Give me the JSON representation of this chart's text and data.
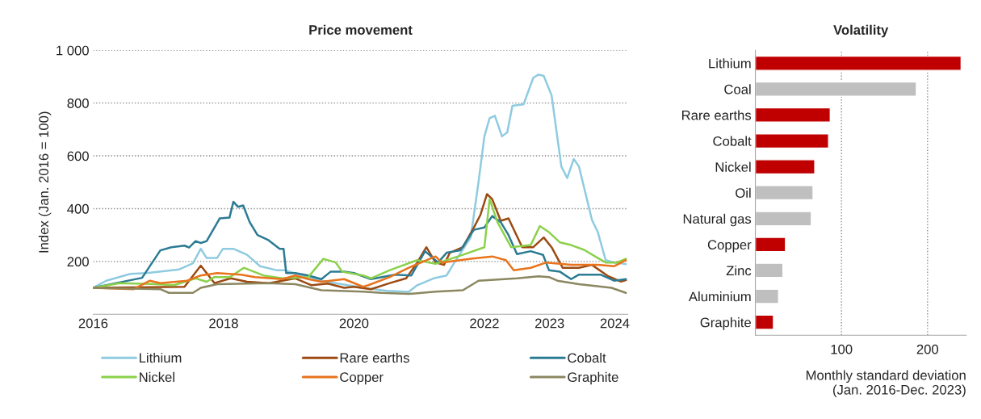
{
  "chart_data": [
    {
      "type": "line",
      "title": "Price movement",
      "ylabel": "Index (Jan. 2016 = 100)",
      "xlim": [
        2016,
        2024.2
      ],
      "xticks": [
        2016,
        2018,
        2020,
        2022,
        2023,
        2024
      ],
      "ylim": [
        0,
        1000
      ],
      "yticks": [
        {
          "value": 200,
          "label": "200"
        },
        {
          "value": 400,
          "label": "400"
        },
        {
          "value": 600,
          "label": "600"
        },
        {
          "value": 800,
          "label": "800"
        },
        {
          "value": 1000,
          "label": "1 000"
        }
      ],
      "grid": "y",
      "legend": "bottom",
      "line_style": "solid",
      "marker": "none",
      "series": [
        {
          "name": "Lithium",
          "color": "#8fcbe0",
          "x": [
            2016.0,
            2016.2,
            2016.57,
            2016.82,
            2017.32,
            2017.53,
            2017.65,
            2017.74,
            2017.9,
            2017.99,
            2018.15,
            2018.36,
            2018.56,
            2018.81,
            2018.93,
            2019.5,
            2020.14,
            2020.5,
            2020.84,
            2020.97,
            2021.22,
            2021.42,
            2021.54,
            2021.79,
            2021.91,
            2022.0,
            2022.08,
            2022.16,
            2022.27,
            2022.35,
            2022.43,
            2022.6,
            2022.75,
            2022.83,
            2022.91,
            2023.03,
            2023.18,
            2023.27,
            2023.37,
            2023.45,
            2023.65,
            2023.74,
            2023.86,
            2023.99,
            2024.17
          ],
          "values": [
            100,
            127,
            153,
            156,
            170,
            193,
            248,
            213,
            213,
            248,
            248,
            225,
            182,
            167,
            167,
            127,
            100,
            89,
            85,
            110,
            136,
            147,
            196,
            291,
            501,
            674,
            743,
            752,
            674,
            689,
            790,
            795,
            896,
            908,
            903,
            830,
            560,
            516,
            588,
            560,
            357,
            311,
            205,
            196,
            190
          ]
        },
        {
          "name": "Rare earths",
          "color": "#9c4a12",
          "x": [
            2016.0,
            2017.4,
            2017.65,
            2017.74,
            2017.86,
            2018.11,
            2018.36,
            2018.7,
            2019.1,
            2019.35,
            2019.6,
            2019.85,
            2020.0,
            2020.26,
            2020.55,
            2020.8,
            2020.97,
            2021.11,
            2021.25,
            2021.38,
            2021.47,
            2021.67,
            2021.84,
            2021.94,
            2022.04,
            2022.12,
            2022.25,
            2022.37,
            2022.58,
            2022.75,
            2022.91,
            2023.03,
            2023.2,
            2023.45,
            2023.65,
            2023.9,
            2024.09,
            2024.17
          ],
          "values": [
            100,
            104,
            184,
            156,
            118,
            136,
            123,
            118,
            136,
            110,
            116,
            100,
            104,
            95,
            118,
            136,
            196,
            254,
            196,
            187,
            233,
            254,
            329,
            377,
            455,
            436,
            354,
            363,
            254,
            254,
            291,
            254,
            176,
            176,
            187,
            144,
            124,
            129
          ]
        },
        {
          "name": "Cobalt",
          "color": "#2b7b93",
          "x": [
            2016.0,
            2016.75,
            2017.03,
            2017.2,
            2017.4,
            2017.47,
            2017.57,
            2017.65,
            2017.74,
            2017.94,
            2018.09,
            2018.15,
            2018.22,
            2018.3,
            2018.4,
            2018.52,
            2018.68,
            2018.86,
            2018.92,
            2018.96,
            2019.1,
            2019.3,
            2019.5,
            2019.64,
            2019.85,
            2020.0,
            2020.26,
            2020.63,
            2020.88,
            2021.09,
            2021.29,
            2021.42,
            2021.63,
            2021.84,
            2022.0,
            2022.12,
            2022.25,
            2022.37,
            2022.5,
            2022.71,
            2022.9,
            2022.99,
            2023.16,
            2023.33,
            2023.45,
            2023.78,
            2023.99,
            2024.17
          ],
          "values": [
            100,
            138,
            242,
            254,
            260,
            253,
            277,
            270,
            277,
            363,
            366,
            426,
            407,
            412,
            349,
            300,
            282,
            248,
            248,
            156,
            156,
            147,
            133,
            161,
            161,
            156,
            133,
            150,
            147,
            239,
            196,
            233,
            242,
            320,
            329,
            372,
            349,
            300,
            228,
            239,
            225,
            167,
            161,
            133,
            150,
            150,
            127,
            133
          ]
        },
        {
          "name": "Nickel",
          "color": "#8bd14a",
          "x": [
            2016.0,
            2016.41,
            2016.9,
            2017.24,
            2017.57,
            2017.74,
            2017.86,
            2018.1,
            2018.31,
            2018.61,
            2018.9,
            2019.3,
            2019.53,
            2019.72,
            2019.82,
            2020.14,
            2020.26,
            2020.55,
            2020.97,
            2021.25,
            2021.67,
            2022.0,
            2022.08,
            2022.2,
            2022.41,
            2022.71,
            2022.85,
            2022.99,
            2023.16,
            2023.33,
            2023.53,
            2023.74,
            2023.86,
            2024.03,
            2024.17
          ],
          "values": [
            100,
            118,
            115,
            110,
            136,
            123,
            141,
            141,
            176,
            147,
            136,
            141,
            210,
            196,
            161,
            147,
            136,
            167,
            205,
            191,
            225,
            254,
            436,
            349,
            254,
            262,
            334,
            311,
            272,
            262,
            244,
            213,
            196,
            196,
            210
          ]
        },
        {
          "name": "Copper",
          "color": "#e8731c",
          "x": [
            2016.0,
            2016.62,
            2016.87,
            2017.03,
            2017.44,
            2017.65,
            2017.9,
            2018.27,
            2018.48,
            2018.9,
            2019.1,
            2019.3,
            2019.5,
            2019.85,
            2020.14,
            2020.22,
            2020.55,
            2020.84,
            2021.25,
            2021.35,
            2021.79,
            2022.12,
            2022.33,
            2022.45,
            2022.71,
            2022.95,
            2023.33,
            2023.74,
            2023.99,
            2024.17
          ],
          "values": [
            100,
            95,
            127,
            118,
            127,
            147,
            156,
            150,
            141,
            133,
            147,
            133,
            123,
            133,
            104,
            110,
            141,
            176,
            219,
            196,
            210,
            219,
            205,
            167,
            176,
            196,
            187,
            187,
            182,
            205
          ]
        },
        {
          "name": "Graphite",
          "color": "#8b8760",
          "x": [
            2016.0,
            2017.03,
            2017.16,
            2017.53,
            2017.65,
            2017.9,
            2018.68,
            2019.1,
            2019.5,
            2020.14,
            2020.42,
            2020.84,
            2021.25,
            2021.67,
            2021.91,
            2022.5,
            2022.83,
            2022.99,
            2023.12,
            2023.45,
            2023.95,
            2024.17
          ],
          "values": [
            100,
            95,
            81,
            81,
            100,
            114,
            118,
            114,
            91,
            86,
            81,
            77,
            86,
            91,
            127,
            136,
            144,
            141,
            127,
            114,
            100,
            81
          ]
        }
      ]
    },
    {
      "type": "bar",
      "orientation": "horizontal",
      "title": "Volatility",
      "xlabel": "Monthly standard deviation\n(Jan. 2016-Dec. 2023)",
      "categories": [
        "Lithium",
        "Coal",
        "Rare earths",
        "Cobalt",
        "Nickel",
        "Oil",
        "Natural gas",
        "Copper",
        "Zinc",
        "Aluminium",
        "Graphite"
      ],
      "values": [
        239,
        187,
        87,
        85,
        69,
        67,
        65,
        35,
        32,
        27,
        21
      ],
      "colors": [
        "#c00000",
        "#bfbfbf",
        "#c00000",
        "#c00000",
        "#c00000",
        "#bfbfbf",
        "#bfbfbf",
        "#c00000",
        "#bfbfbf",
        "#bfbfbf",
        "#c00000"
      ],
      "xlim": [
        0,
        245
      ],
      "xticks": [
        100,
        200
      ],
      "grid": "x"
    }
  ]
}
